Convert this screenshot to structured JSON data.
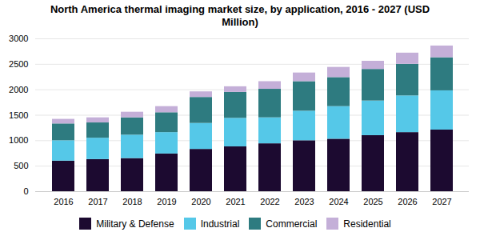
{
  "chart_data": {
    "type": "bar",
    "stacked": true,
    "title": "North America thermal imaging market size, by application, 2016 - 2027 (USD\nMillion)",
    "categories": [
      "2016",
      "2017",
      "2018",
      "2019",
      "2020",
      "2021",
      "2022",
      "2023",
      "2024",
      "2025",
      "2026",
      "2027"
    ],
    "series": [
      {
        "name": "Military & Defense",
        "color": "#1c0a30",
        "values": [
          600,
          630,
          650,
          740,
          830,
          880,
          940,
          1000,
          1030,
          1100,
          1160,
          1210
        ]
      },
      {
        "name": "Industrial",
        "color": "#55c8e8",
        "values": [
          400,
          420,
          460,
          420,
          510,
          560,
          510,
          580,
          640,
          680,
          720,
          770
        ]
      },
      {
        "name": "Commercial",
        "color": "#2e7b80",
        "values": [
          330,
          300,
          340,
          390,
          510,
          510,
          560,
          580,
          570,
          620,
          620,
          650
        ]
      },
      {
        "name": "Residential",
        "color": "#c4afd8",
        "values": [
          90,
          100,
          110,
          120,
          110,
          110,
          150,
          170,
          200,
          160,
          220,
          230
        ]
      }
    ],
    "ylim": [
      0,
      3000
    ],
    "yticks": [
      0,
      500,
      1000,
      1500,
      2000,
      2500,
      3000
    ],
    "grid": true,
    "legend": "bottom"
  }
}
